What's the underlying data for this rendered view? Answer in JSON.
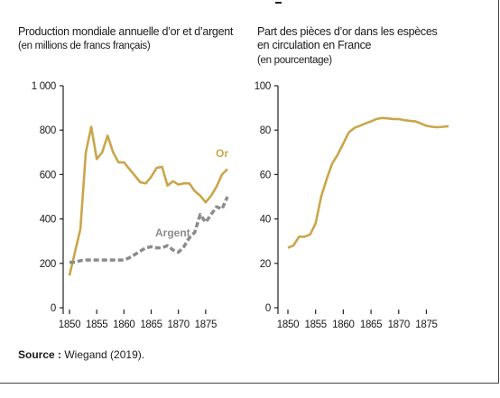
{
  "chart_data": [
    {
      "type": "line",
      "title": "Production mondiale annuelle d’or et d’argent",
      "subtitle": "(en millions de francs français)",
      "xlim": [
        1850,
        1879
      ],
      "ylim": [
        0,
        1000
      ],
      "x_ticks": [
        "1850",
        "1855",
        "1860",
        "1865",
        "1870",
        "1875"
      ],
      "y_ticks": [
        "0",
        "200",
        "400",
        "600",
        "800",
        "1 000"
      ],
      "grid": false,
      "colors": {
        "or": "#c9a64a",
        "argent": "#8c8c8c"
      },
      "series": [
        {
          "name": "Or",
          "color": "#c9a64a",
          "dash": false,
          "x": [
            1850,
            1851,
            1852,
            1853,
            1854,
            1855,
            1856,
            1857,
            1858,
            1859,
            1860,
            1861,
            1862,
            1863,
            1864,
            1865,
            1866,
            1867,
            1868,
            1869,
            1870,
            1871,
            1872,
            1873,
            1874,
            1875,
            1876,
            1877,
            1878,
            1879
          ],
          "values": [
            145,
            250,
            355,
            700,
            815,
            670,
            700,
            775,
            700,
            655,
            655,
            625,
            595,
            565,
            560,
            590,
            630,
            635,
            550,
            570,
            555,
            560,
            560,
            525,
            505,
            475,
            505,
            545,
            600,
            625
          ]
        },
        {
          "name": "Argent",
          "color": "#8c8c8c",
          "dash": true,
          "x": [
            1850,
            1851,
            1852,
            1853,
            1854,
            1855,
            1856,
            1857,
            1858,
            1859,
            1860,
            1861,
            1862,
            1863,
            1864,
            1865,
            1866,
            1867,
            1868,
            1869,
            1870,
            1871,
            1872,
            1873,
            1874,
            1875,
            1876,
            1877,
            1878,
            1879
          ],
          "values": [
            205,
            205,
            212,
            215,
            215,
            215,
            215,
            215,
            215,
            215,
            215,
            225,
            240,
            255,
            270,
            275,
            270,
            270,
            280,
            260,
            250,
            275,
            315,
            340,
            420,
            385,
            420,
            455,
            445,
            500
          ]
        }
      ]
    },
    {
      "type": "line",
      "title": "Part des pièces d’or dans les espèces",
      "title_line2": "en circulation en France",
      "subtitle": "(en pourcentage)",
      "xlim": [
        1850,
        1879
      ],
      "ylim": [
        0,
        100
      ],
      "x_ticks": [
        "1850",
        "1855",
        "1860",
        "1865",
        "1870",
        "1875"
      ],
      "y_ticks": [
        "0",
        "20",
        "40",
        "60",
        "80",
        "100"
      ],
      "grid": false,
      "series": [
        {
          "color": "#c9a64a",
          "dash": false,
          "x": [
            1850,
            1851,
            1852,
            1853,
            1854,
            1855,
            1856,
            1857,
            1858,
            1859,
            1860,
            1861,
            1862,
            1863,
            1864,
            1865,
            1866,
            1867,
            1868,
            1869,
            1870,
            1871,
            1872,
            1873,
            1874,
            1875,
            1876,
            1877,
            1878,
            1879
          ],
          "values": [
            27,
            28,
            32,
            32,
            33,
            38,
            50,
            58,
            65,
            69,
            74,
            79,
            81,
            82,
            83,
            84,
            85,
            85.5,
            85.3,
            85,
            85,
            84.5,
            84.2,
            84,
            83,
            82,
            81.5,
            81.3,
            81.5,
            81.8
          ]
        }
      ]
    }
  ],
  "source": {
    "label": "Source :",
    "text": " Wiegand (2019)."
  }
}
